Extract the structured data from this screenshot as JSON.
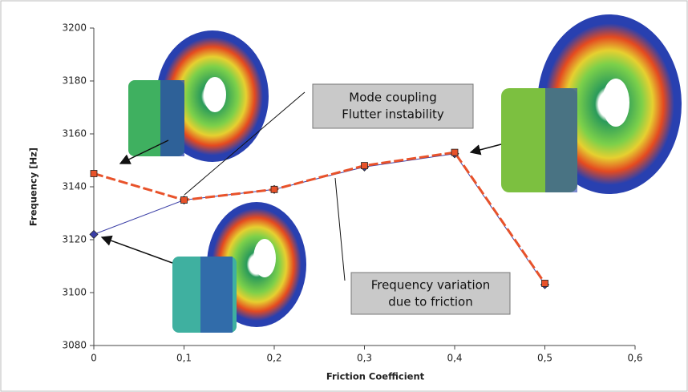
{
  "chart_data": {
    "type": "line",
    "x_label": "Friction Coefficient",
    "y_label": "Frequency [Hz]",
    "x": [
      0,
      0.1,
      0.2,
      0.3,
      0.4,
      0.5
    ],
    "series": [
      {
        "color": "#3a3ea6",
        "marker": "diamond",
        "dashed": false,
        "values": [
          3122,
          3135,
          3139,
          3147.5,
          3152.5,
          3103
        ]
      },
      {
        "color": "#e8522a",
        "marker": "square",
        "dashed": true,
        "values": [
          3145,
          3135,
          3139,
          3148,
          3153,
          3103.5
        ]
      }
    ],
    "xlim": [
      0,
      0.6
    ],
    "xticks": [
      0,
      {
        "value": 0.1,
        "label": "0,1"
      },
      {
        "value": 0.2,
        "label": "0,2"
      },
      {
        "value": 0.3,
        "label": "0,3"
      },
      {
        "value": 0.4,
        "label": "0,4"
      },
      {
        "value": 0.5,
        "label": "0,5"
      },
      {
        "value": 0.6,
        "label": "0,6"
      }
    ],
    "ylim": [
      3080,
      3200
    ],
    "yticks": [
      3080,
      3100,
      3120,
      3140,
      3160,
      3180,
      3200
    ],
    "annotations": [
      [
        "Mode coupling",
        "Flutter instability"
      ],
      [
        "Frequency variation",
        "due to friction"
      ]
    ]
  }
}
